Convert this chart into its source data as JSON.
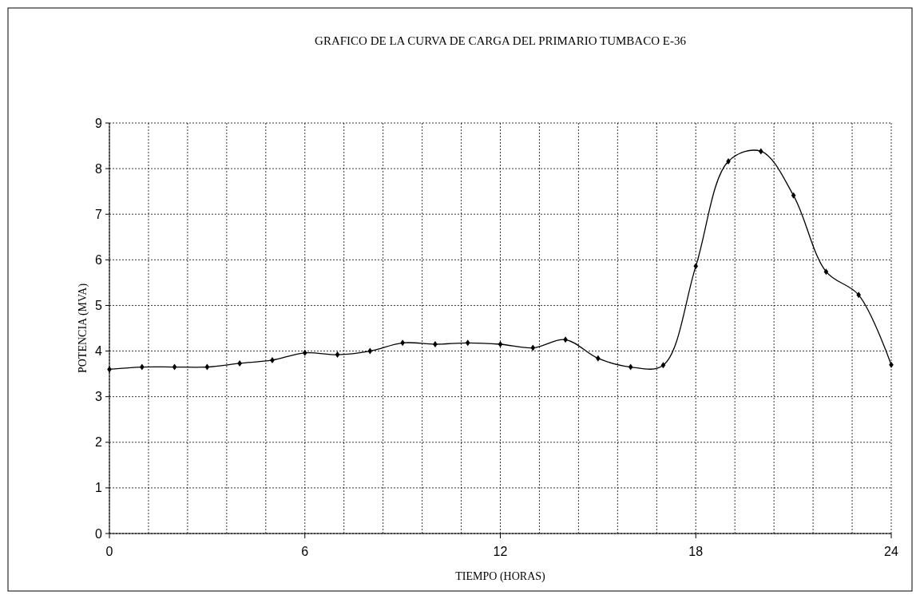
{
  "chart_data": {
    "type": "line",
    "title": "GRAFICO DE LA CURVA DE CARGA DEL PRIMARIO TUMBACO E-36",
    "xlabel": "TIEMPO (HORAS)",
    "ylabel": "POTENCIA (MVA)",
    "x": [
      0,
      1,
      2,
      3,
      4,
      5,
      6,
      7,
      8,
      9,
      10,
      11,
      12,
      13,
      14,
      15,
      16,
      17,
      18,
      19,
      20,
      21,
      22,
      23,
      24
    ],
    "series": [
      {
        "color": "#000000",
        "values": [
          3.6,
          3.65,
          3.65,
          3.65,
          3.73,
          3.8,
          3.96,
          3.92,
          4.0,
          4.18,
          4.15,
          4.18,
          4.15,
          4.07,
          4.25,
          3.84,
          3.65,
          3.69,
          5.86,
          8.16,
          8.38,
          7.41,
          5.74,
          5.23,
          3.7
        ]
      }
    ],
    "xlim": [
      0,
      24
    ],
    "xticks": [
      0,
      {
        "value": 1.2,
        "label": null
      },
      {
        "value": 2.4,
        "label": null
      },
      {
        "value": 3.6,
        "label": null
      },
      {
        "value": 4.8,
        "label": null
      },
      6,
      {
        "value": 7.2,
        "label": null
      },
      {
        "value": 8.4,
        "label": null
      },
      {
        "value": 9.6,
        "label": null
      },
      {
        "value": 10.8,
        "label": null
      },
      12,
      {
        "value": 13.2,
        "label": null
      },
      {
        "value": 14.4,
        "label": null
      },
      {
        "value": 15.6,
        "label": null
      },
      {
        "value": 16.8,
        "label": null
      },
      18,
      {
        "value": 19.2,
        "label": null
      },
      {
        "value": 20.4,
        "label": null
      },
      {
        "value": 21.6,
        "label": null
      },
      {
        "value": 22.8,
        "label": null
      },
      24
    ],
    "ylim": [
      0,
      9
    ],
    "yticks": [
      0,
      1,
      2,
      3,
      4,
      5,
      6,
      7,
      8,
      9
    ],
    "grid": true,
    "marker": "diamond",
    "line_style": "solid"
  }
}
